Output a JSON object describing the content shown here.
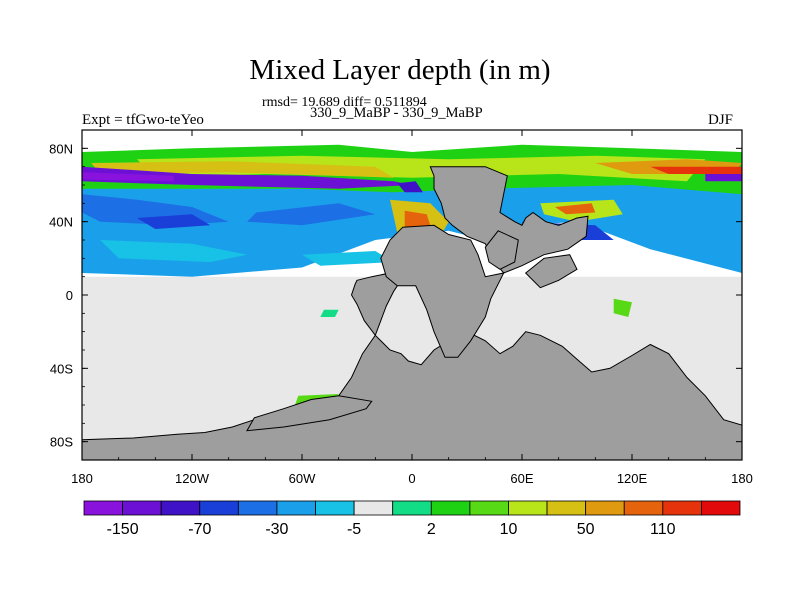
{
  "header": {
    "title": "Mixed Layer depth (in m)",
    "stats": "rmsd= 19.689 diff= 0.511894",
    "cases": "330_9_MaBP - 330_9_MaBP",
    "expt": "Expt = tfGwo-teYeo",
    "season": "DJF"
  },
  "chart_data": {
    "type": "heatmap",
    "title": "Mixed Layer depth (in m)",
    "projection": "cylindrical equidistant (global map)",
    "xlim": [
      -180,
      180
    ],
    "ylim": [
      -90,
      90
    ],
    "x_ticks": [
      {
        "value": -180,
        "label": "180"
      },
      {
        "value": -120,
        "label": "120W"
      },
      {
        "value": -60,
        "label": "60W"
      },
      {
        "value": 0,
        "label": "0"
      },
      {
        "value": 60,
        "label": "60E"
      },
      {
        "value": 120,
        "label": "120E"
      },
      {
        "value": 180,
        "label": "180"
      }
    ],
    "y_ticks": [
      {
        "value": 80,
        "label": "80N"
      },
      {
        "value": 40,
        "label": "40N"
      },
      {
        "value": 0,
        "label": "0"
      },
      {
        "value": -40,
        "label": "40S"
      },
      {
        "value": -80,
        "label": "80S"
      }
    ],
    "colorbar": {
      "colors": [
        "#8a12dd",
        "#6c10d6",
        "#3f12c8",
        "#1a3ed8",
        "#1d6fe6",
        "#1aa0ea",
        "#18c2e6",
        "#e8e8e8",
        "#12dd86",
        "#1ed213",
        "#58d915",
        "#b7e51a",
        "#d6c014",
        "#e09a10",
        "#e6630e",
        "#e6330c",
        "#e20a0a"
      ],
      "labels": [
        "-150",
        "-70",
        "-30",
        "-5",
        "2",
        "10",
        "50",
        "110"
      ],
      "label_after_box": [
        0,
        2,
        4,
        6,
        8,
        10,
        12,
        14
      ]
    },
    "land_color": "#9e9e9e",
    "land_regions": [
      {
        "name": "Americas",
        "lonlat": [
          [
            -30,
            8
          ],
          [
            -22,
            10
          ],
          [
            -12,
            12
          ],
          [
            -6,
            14
          ],
          [
            -6,
            8
          ],
          [
            -10,
            2
          ],
          [
            -14,
            -6
          ],
          [
            -20,
            -22
          ],
          [
            -27,
            -32
          ],
          [
            -33,
            -45
          ],
          [
            -40,
            -55
          ],
          [
            -55,
            -60
          ],
          [
            -72,
            -65
          ],
          [
            -86,
            -68
          ],
          [
            -98,
            -72
          ],
          [
            -113,
            -75
          ],
          [
            -128,
            -76
          ],
          [
            -152,
            -78
          ],
          [
            -180,
            -79
          ],
          [
            -180,
            -90
          ],
          [
            180,
            -90
          ],
          [
            180,
            -71
          ],
          [
            170,
            -68
          ],
          [
            160,
            -55
          ],
          [
            150,
            -45
          ],
          [
            140,
            -32
          ],
          [
            130,
            -27
          ],
          [
            120,
            -33
          ],
          [
            108,
            -40
          ],
          [
            98,
            -42
          ],
          [
            90,
            -35
          ],
          [
            82,
            -28
          ],
          [
            70,
            -22
          ],
          [
            62,
            -20
          ],
          [
            55,
            -28
          ],
          [
            48,
            -32
          ],
          [
            40,
            -25
          ],
          [
            30,
            -20
          ],
          [
            20,
            -25
          ],
          [
            12,
            -30
          ],
          [
            5,
            -38
          ],
          [
            -2,
            -36
          ],
          [
            -6,
            -32
          ],
          [
            -12,
            -30
          ],
          [
            -20,
            -22
          ],
          [
            -26,
            -14
          ],
          [
            -30,
            -5
          ],
          [
            -33,
            0
          ],
          [
            -31,
            6
          ]
        ]
      },
      {
        "name": "Eurasia",
        "lonlat": [
          [
            10,
            70
          ],
          [
            40,
            70
          ],
          [
            52,
            65
          ],
          [
            48,
            45
          ],
          [
            56,
            40
          ],
          [
            60,
            38
          ],
          [
            62,
            42
          ],
          [
            66,
            45
          ],
          [
            73,
            40
          ],
          [
            80,
            38
          ],
          [
            90,
            42
          ],
          [
            96,
            43
          ],
          [
            95,
            32
          ],
          [
            85,
            25
          ],
          [
            72,
            22
          ],
          [
            60,
            16
          ],
          [
            50,
            12
          ],
          [
            45,
            18
          ],
          [
            40,
            28
          ],
          [
            30,
            32
          ],
          [
            22,
            38
          ],
          [
            18,
            42
          ],
          [
            16,
            50
          ],
          [
            12,
            58
          ],
          [
            12,
            65
          ]
        ]
      },
      {
        "name": "Arabia",
        "lonlat": [
          [
            47,
            35
          ],
          [
            58,
            30
          ],
          [
            56,
            18
          ],
          [
            48,
            14
          ],
          [
            42,
            18
          ],
          [
            40,
            26
          ]
        ]
      },
      {
        "name": "Africa",
        "lonlat": [
          [
            -5,
            37
          ],
          [
            12,
            38
          ],
          [
            20,
            33
          ],
          [
            32,
            30
          ],
          [
            36,
            22
          ],
          [
            40,
            10
          ],
          [
            50,
            12
          ],
          [
            43,
            -2
          ],
          [
            40,
            -12
          ],
          [
            32,
            -25
          ],
          [
            25,
            -34
          ],
          [
            18,
            -34
          ],
          [
            12,
            -20
          ],
          [
            8,
            -8
          ],
          [
            2,
            5
          ],
          [
            -8,
            5
          ],
          [
            -14,
            10
          ],
          [
            -17,
            20
          ],
          [
            -12,
            30
          ]
        ]
      },
      {
        "name": "India-Asia",
        "lonlat": [
          [
            62,
            12
          ],
          [
            72,
            20
          ],
          [
            86,
            22
          ],
          [
            90,
            14
          ],
          [
            80,
            8
          ],
          [
            70,
            4
          ]
        ]
      },
      {
        "name": "Antarctic-peninsula",
        "lonlat": [
          [
            -40,
            -55
          ],
          [
            -55,
            -57
          ],
          [
            -70,
            -62
          ],
          [
            -86,
            -67
          ],
          [
            -90,
            -74
          ],
          [
            -70,
            -72
          ],
          [
            -45,
            -68
          ],
          [
            -25,
            -62
          ],
          [
            -22,
            -58
          ]
        ]
      }
    ],
    "field_regions": [
      {
        "category": 7,
        "lonlat": [
          [
            -180,
            10
          ],
          [
            180,
            10
          ],
          [
            180,
            -90
          ],
          [
            -180,
            -90
          ]
        ]
      },
      {
        "category": 5,
        "lonlat": [
          [
            -180,
            75
          ],
          [
            -40,
            80
          ],
          [
            10,
            70
          ],
          [
            50,
            66
          ],
          [
            110,
            74
          ],
          [
            180,
            72
          ],
          [
            180,
            12
          ],
          [
            130,
            25
          ],
          [
            90,
            40
          ],
          [
            60,
            38
          ],
          [
            40,
            30
          ],
          [
            20,
            35
          ],
          [
            -20,
            30
          ],
          [
            -60,
            15
          ],
          [
            -120,
            10
          ],
          [
            -180,
            12
          ]
        ]
      },
      {
        "category": 4,
        "lonlat": [
          [
            -180,
            55
          ],
          [
            -150,
            52
          ],
          [
            -120,
            48
          ],
          [
            -100,
            40
          ],
          [
            -130,
            38
          ],
          [
            -170,
            40
          ],
          [
            -180,
            45
          ]
        ]
      },
      {
        "category": 3,
        "lonlat": [
          [
            -150,
            42
          ],
          [
            -120,
            44
          ],
          [
            -110,
            38
          ],
          [
            -140,
            36
          ]
        ]
      },
      {
        "category": 4,
        "lonlat": [
          [
            -85,
            45
          ],
          [
            -40,
            50
          ],
          [
            -20,
            44
          ],
          [
            -60,
            38
          ],
          [
            -90,
            40
          ]
        ]
      },
      {
        "category": 6,
        "lonlat": [
          [
            -170,
            30
          ],
          [
            -120,
            28
          ],
          [
            -90,
            22
          ],
          [
            -110,
            18
          ],
          [
            -160,
            20
          ]
        ]
      },
      {
        "category": 6,
        "lonlat": [
          [
            -60,
            22
          ],
          [
            -20,
            24
          ],
          [
            -10,
            18
          ],
          [
            -50,
            16
          ]
        ]
      },
      {
        "category": 9,
        "lonlat": [
          [
            -180,
            78
          ],
          [
            -120,
            80
          ],
          [
            -40,
            82
          ],
          [
            0,
            78
          ],
          [
            60,
            82
          ],
          [
            120,
            80
          ],
          [
            180,
            78
          ],
          [
            180,
            55
          ],
          [
            120,
            60
          ],
          [
            40,
            58
          ],
          [
            -10,
            56
          ],
          [
            -60,
            58
          ],
          [
            -120,
            58
          ],
          [
            -180,
            58
          ]
        ]
      },
      {
        "category": 11,
        "lonlat": [
          [
            -150,
            74
          ],
          [
            -60,
            76
          ],
          [
            20,
            74
          ],
          [
            100,
            76
          ],
          [
            160,
            74
          ],
          [
            150,
            62
          ],
          [
            80,
            66
          ],
          [
            0,
            64
          ],
          [
            -80,
            66
          ],
          [
            -140,
            64
          ]
        ]
      },
      {
        "category": 12,
        "lonlat": [
          [
            -175,
            72
          ],
          [
            -100,
            73
          ],
          [
            -20,
            70
          ],
          [
            -10,
            64
          ],
          [
            -100,
            67
          ],
          [
            -170,
            66
          ]
        ]
      },
      {
        "category": 13,
        "lonlat": [
          [
            100,
            72
          ],
          [
            150,
            74
          ],
          [
            180,
            72
          ],
          [
            175,
            66
          ],
          [
            120,
            66
          ]
        ]
      },
      {
        "category": 15,
        "lonlat": [
          [
            130,
            70
          ],
          [
            180,
            70
          ],
          [
            180,
            66
          ],
          [
            140,
            66
          ]
        ]
      },
      {
        "category": 1,
        "lonlat": [
          [
            -180,
            70
          ],
          [
            -120,
            66
          ],
          [
            -60,
            65
          ],
          [
            -10,
            62
          ],
          [
            0,
            60
          ],
          [
            -40,
            58
          ],
          [
            -120,
            60
          ],
          [
            -180,
            62
          ]
        ]
      },
      {
        "category": 0,
        "lonlat": [
          [
            -180,
            67
          ],
          [
            -130,
            65
          ],
          [
            -130,
            62
          ],
          [
            -180,
            63
          ]
        ]
      },
      {
        "category": 1,
        "lonlat": [
          [
            160,
            66
          ],
          [
            180,
            66
          ],
          [
            180,
            62
          ],
          [
            160,
            62
          ]
        ]
      },
      {
        "category": 2,
        "lonlat": [
          [
            -8,
            61
          ],
          [
            2,
            62
          ],
          [
            6,
            56
          ],
          [
            -4,
            56
          ]
        ]
      },
      {
        "category": 12,
        "lonlat": [
          [
            -12,
            52
          ],
          [
            10,
            50
          ],
          [
            20,
            40
          ],
          [
            12,
            26
          ],
          [
            -2,
            24
          ],
          [
            -8,
            34
          ]
        ]
      },
      {
        "category": 14,
        "lonlat": [
          [
            -4,
            46
          ],
          [
            8,
            44
          ],
          [
            12,
            32
          ],
          [
            2,
            30
          ],
          [
            -4,
            36
          ]
        ]
      },
      {
        "category": 11,
        "lonlat": [
          [
            70,
            50
          ],
          [
            110,
            52
          ],
          [
            115,
            44
          ],
          [
            90,
            40
          ],
          [
            72,
            44
          ]
        ]
      },
      {
        "category": 14,
        "lonlat": [
          [
            78,
            48
          ],
          [
            98,
            50
          ],
          [
            100,
            45
          ],
          [
            84,
            44
          ]
        ]
      },
      {
        "category": 3,
        "lonlat": [
          [
            60,
            40
          ],
          [
            100,
            38
          ],
          [
            110,
            30
          ],
          [
            90,
            30
          ],
          [
            62,
            32
          ]
        ]
      },
      {
        "category": 10,
        "lonlat": [
          [
            110,
            -2
          ],
          [
            120,
            -4
          ],
          [
            118,
            -12
          ],
          [
            110,
            -10
          ]
        ]
      },
      {
        "category": 10,
        "lonlat": [
          [
            -62,
            -55
          ],
          [
            -40,
            -54
          ],
          [
            -50,
            -66
          ],
          [
            -66,
            -66
          ]
        ]
      },
      {
        "category": 8,
        "lonlat": [
          [
            -48,
            -8
          ],
          [
            -40,
            -8
          ],
          [
            -42,
            -12
          ],
          [
            -50,
            -12
          ]
        ]
      },
      {
        "category": 9,
        "lonlat": [
          [
            38,
            5
          ],
          [
            46,
            5
          ],
          [
            44,
            0
          ],
          [
            38,
            0
          ]
        ]
      }
    ]
  }
}
